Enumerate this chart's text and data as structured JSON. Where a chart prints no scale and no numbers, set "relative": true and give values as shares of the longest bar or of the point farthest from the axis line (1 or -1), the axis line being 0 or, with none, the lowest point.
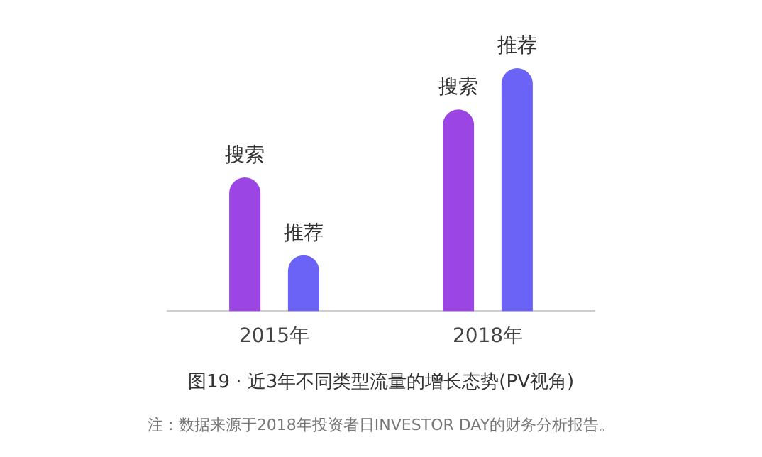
{
  "chart_data": {
    "type": "bar",
    "title": "图19 · 近3年不同类型流量的增长态势(PV视角)",
    "annotations": [
      "注：数据来源于2018年投资者日INVESTOR DAY的财务分析报告。"
    ],
    "categories": [
      "2015年",
      "2018年"
    ],
    "relative": true,
    "legend": false,
    "grid": false,
    "series": [
      {
        "name": "搜索",
        "color": "#9b45e4",
        "values": [
          0.55,
          0.83
        ]
      },
      {
        "name": "推荐",
        "color": "#6a63f6",
        "values": [
          0.23,
          1
        ]
      }
    ]
  }
}
